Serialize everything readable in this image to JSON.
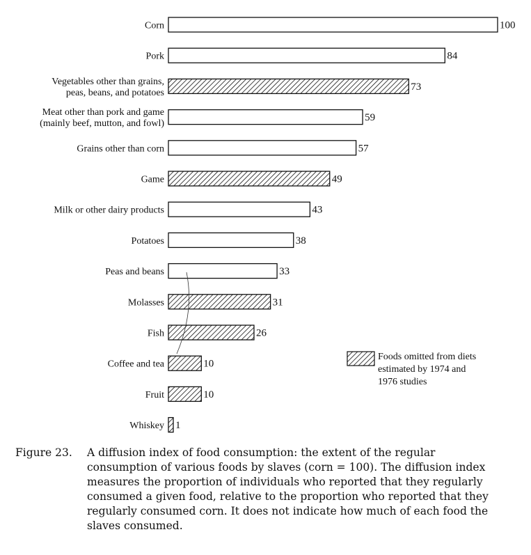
{
  "chart_data": {
    "type": "bar",
    "orientation": "horizontal",
    "categories": [
      [
        "Corn"
      ],
      [
        "Pork"
      ],
      [
        "Vegetables other than grains,",
        "peas, beans, and potatoes"
      ],
      [
        "Meat other than pork and game",
        "(mainly beef, mutton, and fowl)"
      ],
      [
        "Grains other than corn"
      ],
      [
        "Game"
      ],
      [
        "Milk or other dairy products"
      ],
      [
        "Potatoes"
      ],
      [
        "Peas and beans"
      ],
      [
        "Molasses"
      ],
      [
        "Fish"
      ],
      [
        "Coffee and tea"
      ],
      [
        "Fruit"
      ],
      [
        "Whiskey"
      ]
    ],
    "values": [
      100,
      84,
      73,
      59,
      57,
      49,
      43,
      38,
      33,
      31,
      26,
      10,
      10,
      1
    ],
    "omitted_from_1974_1976_studies": [
      false,
      false,
      true,
      false,
      false,
      true,
      false,
      false,
      false,
      true,
      true,
      true,
      true,
      true
    ],
    "xlim": [
      0,
      100
    ],
    "legend": {
      "position": "lower-right",
      "hatched_label": [
        "Foods omitted from diets",
        "estimated by 1974 and",
        "1976 studies"
      ]
    },
    "bar_fill_colors": {
      "plain": "#ffffff",
      "hatched": "#111111",
      "stroke": "#111111"
    }
  },
  "caption": {
    "label": "Figure 23.",
    "text": "A diffusion index of food consumption: the extent of the regular consumption of various foods by slaves (corn = 100). The diffusion index measures the proportion of individuals who reported that they regularly consumed a given food, relative to the proportion who reported that they regularly consumed corn. It does not indicate how much of each food the slaves consumed."
  }
}
